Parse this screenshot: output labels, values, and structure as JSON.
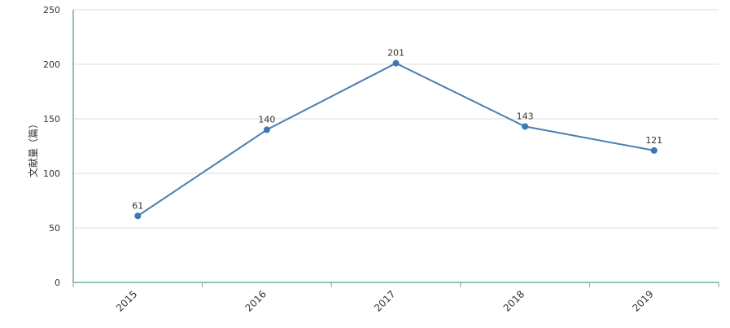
{
  "chart_data": {
    "type": "line",
    "categories": [
      "2015",
      "2016",
      "2017",
      "2018",
      "2019"
    ],
    "series": [
      {
        "values": [
          61,
          140,
          201,
          143,
          121
        ]
      }
    ],
    "data_labels": [
      "61",
      "140",
      "201",
      "143",
      "121"
    ],
    "ylabel": "文献量（篇）",
    "xlabel": "",
    "ylim": [
      0,
      250
    ],
    "yticks": [
      0,
      50,
      100,
      150,
      200,
      250
    ],
    "ytick_labels": [
      "0",
      "50",
      "100",
      "150",
      "200",
      "250"
    ],
    "grid": true,
    "legend": "none",
    "colors": {
      "line": "#4a7eb1",
      "point": "#3e78b4",
      "axis": "#1a8a80",
      "grid": "#dddddd"
    }
  }
}
